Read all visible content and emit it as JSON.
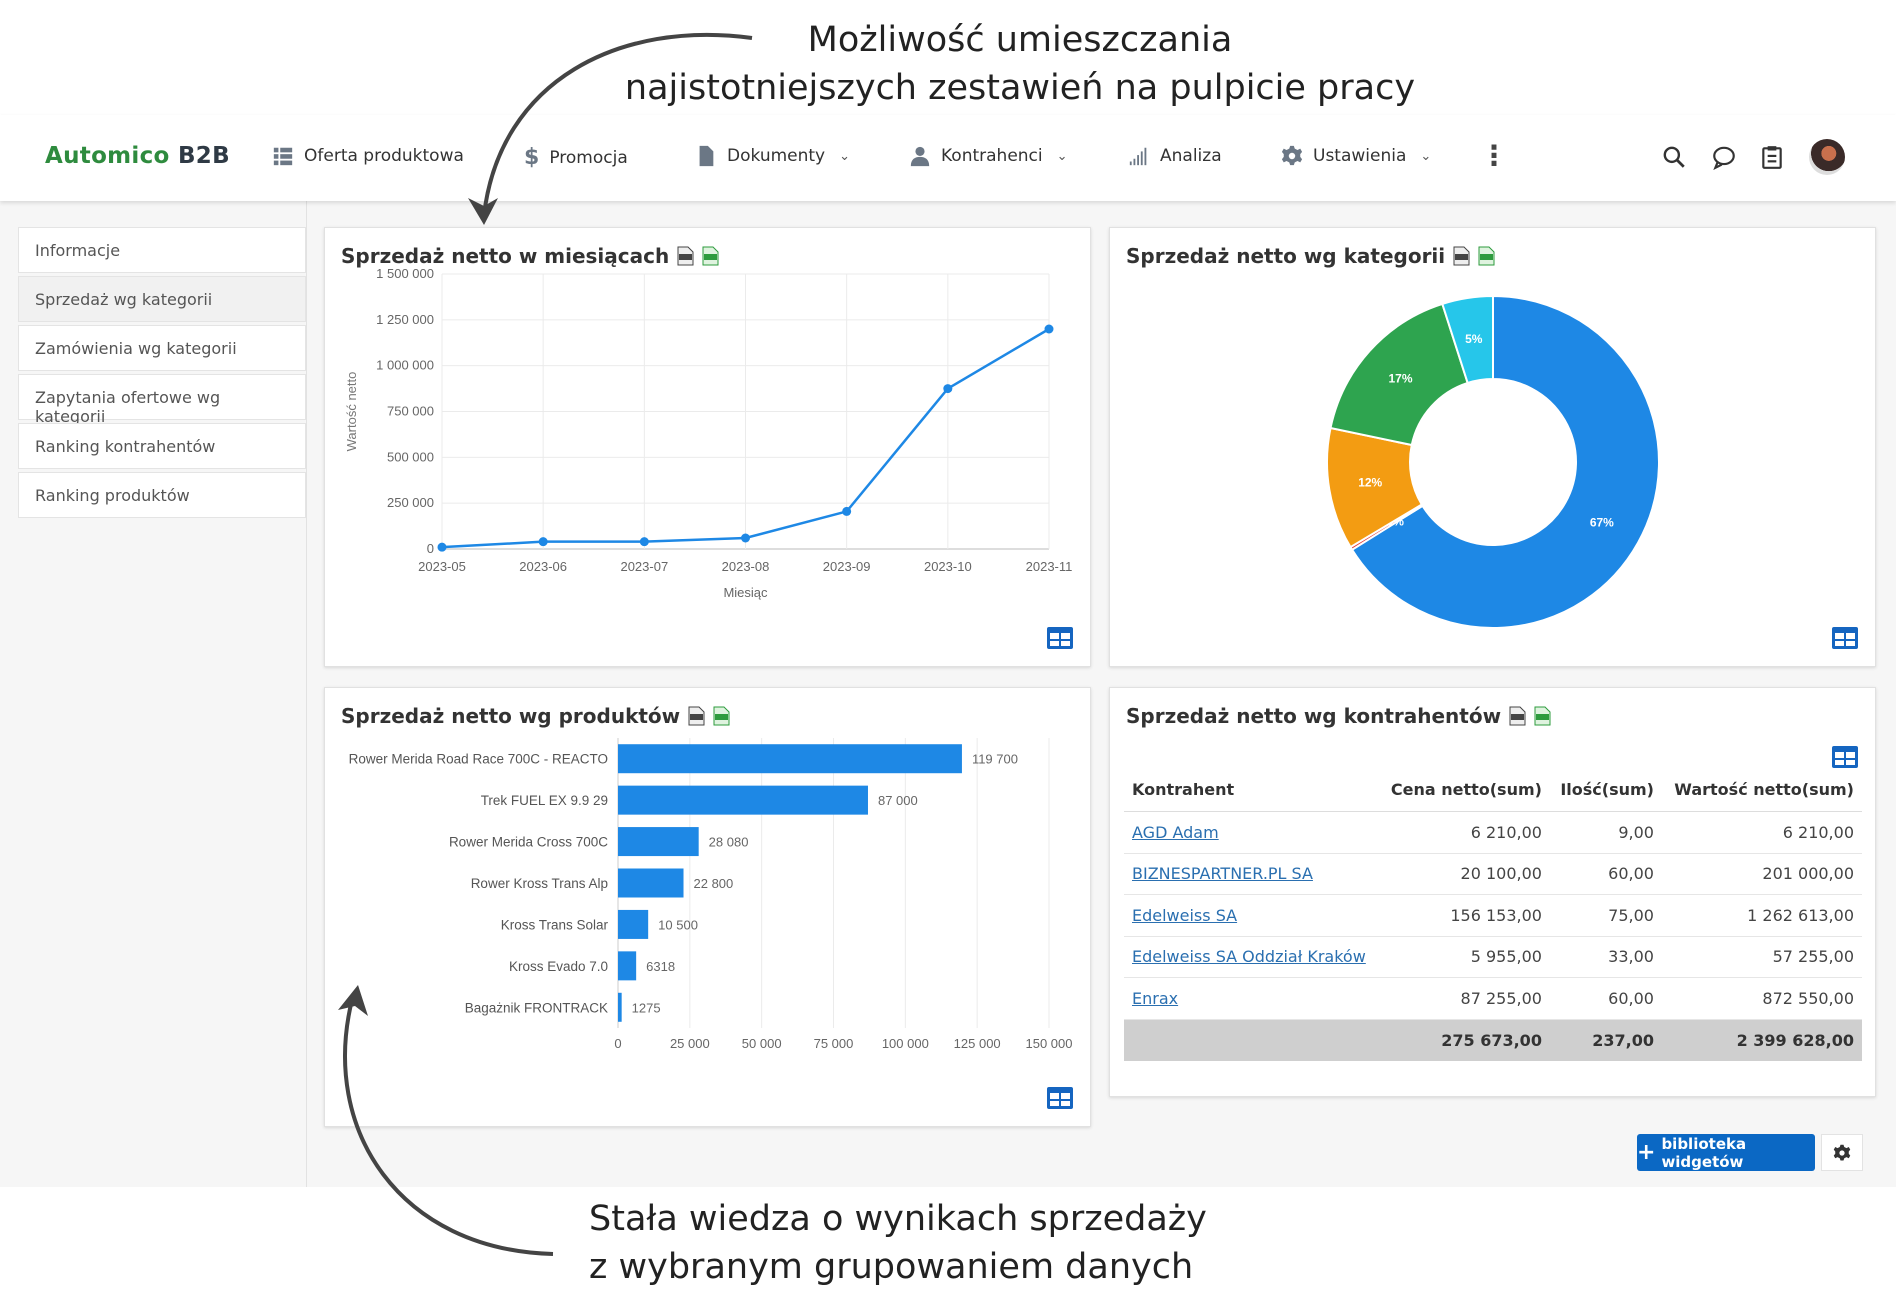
{
  "annotations": {
    "top": [
      "Możliwość umieszczania",
      "najistotniejszych zestawień na pulpicie pracy"
    ],
    "bottom": [
      "Stała wiedza o wynikach sprzedaży",
      "z wybranym grupowaniem danych"
    ]
  },
  "header": {
    "logo_main": "Automico",
    "logo_suffix": " B2B",
    "nav": [
      {
        "label": "Oferta produktowa",
        "icon": "grid-list-icon",
        "dropdown": false
      },
      {
        "label": "Promocja",
        "icon": "dollar-icon",
        "dropdown": false
      },
      {
        "label": "Dokumenty",
        "icon": "document-icon",
        "dropdown": true
      },
      {
        "label": "Kontrahenci",
        "icon": "user-icon",
        "dropdown": true
      },
      {
        "label": "Analiza",
        "icon": "signal-bars-icon",
        "dropdown": false
      },
      {
        "label": "Ustawienia",
        "icon": "gear-icon",
        "dropdown": true
      }
    ],
    "chevron": "⌄",
    "more": "⋮"
  },
  "sidebar": {
    "items": [
      {
        "label": "Informacje"
      },
      {
        "label": "Sprzedaż wg kategorii"
      },
      {
        "label": "Zamówienia wg kategorii"
      },
      {
        "label": "Zapytania ofertowe wg kategorii"
      },
      {
        "label": "Ranking kontrahentów"
      },
      {
        "label": "Ranking produktów"
      }
    ]
  },
  "widgets": {
    "monthly": {
      "title": "Sprzedaż netto w miesiącach"
    },
    "category": {
      "title": "Sprzedaż netto wg kategorii"
    },
    "products": {
      "title": "Sprzedaż netto wg produktów"
    },
    "clients": {
      "title": "Sprzedaż netto wg kontrahentów"
    }
  },
  "clients_table": {
    "columns": [
      "Kontrahent",
      "Cena netto(sum)",
      "Ilość(sum)",
      "Wartość netto(sum)"
    ],
    "rows": [
      [
        "AGD Adam",
        "6 210,00",
        "9,00",
        "6 210,00"
      ],
      [
        "BIZNESPARTNER.PL SA",
        "20 100,00",
        "60,00",
        "201 000,00"
      ],
      [
        "Edelweiss SA",
        "156 153,00",
        "75,00",
        "1 262 613,00"
      ],
      [
        "Edelweiss SA Oddział Kraków",
        "5 955,00",
        "33,00",
        "57 255,00"
      ],
      [
        "Enrax",
        "87 255,00",
        "60,00",
        "872 550,00"
      ]
    ],
    "totals": [
      "",
      "275 673,00",
      "237,00",
      "2 399 628,00"
    ]
  },
  "footer": {
    "library_button": "biblioteka widgetów"
  },
  "colors": {
    "accent": "#1e88e5",
    "brand": "#2e8b3e",
    "button": "#0b68c4",
    "orange": "#f39c12",
    "green": "#2ea44f",
    "cyan": "#26c6ea"
  },
  "chart_data": [
    {
      "type": "line",
      "title": "Sprzedaż netto w miesiącach",
      "xlabel": "Miesiąc",
      "ylabel": "Wartość netto",
      "x": [
        "2023-05",
        "2023-06",
        "2023-07",
        "2023-08",
        "2023-09",
        "2023-10",
        "2023-11"
      ],
      "values": [
        10000,
        40000,
        40000,
        60000,
        205000,
        875000,
        1200000
      ],
      "yticks": [
        "0",
        "250 000",
        "500 000",
        "750 000",
        "1 000 000",
        "1 250 000",
        "1 500 000"
      ],
      "ylim": [
        0,
        1500000
      ],
      "grid": true
    },
    {
      "type": "pie",
      "title": "Sprzedaż netto wg kategorii",
      "donut": true,
      "slices": [
        {
          "label": "67%",
          "value": 67,
          "color": "#1e88e5"
        },
        {
          "label": "0%",
          "value": 0.3,
          "color": "#e53935"
        },
        {
          "label": "12%",
          "value": 12,
          "color": "#f39c12"
        },
        {
          "label": "17%",
          "value": 17,
          "color": "#2ea44f"
        },
        {
          "label": "5%",
          "value": 5,
          "color": "#26c6ea"
        }
      ]
    },
    {
      "type": "bar",
      "orientation": "horizontal",
      "title": "Sprzedaż netto wg produktów",
      "categories": [
        "Rower Merida Road Race 700C - REACTO",
        "Trek FUEL EX 9.9 29",
        "Rower Merida Cross 700C",
        "Rower Kross Trans Alp",
        "Kross Trans Solar",
        "Kross Evado 7.0",
        "Bagażnik FRONTRACK"
      ],
      "values": [
        119700,
        87000,
        28080,
        22800,
        10500,
        6318,
        1275
      ],
      "value_labels": [
        "119 700",
        "87 000",
        "28 080",
        "22 800",
        "10 500",
        "6318",
        "1275"
      ],
      "xticks": [
        "0",
        "25 000",
        "50 000",
        "75 000",
        "100 000",
        "125 000",
        "150 000"
      ],
      "xlim": [
        0,
        150000
      ],
      "grid": true
    }
  ]
}
